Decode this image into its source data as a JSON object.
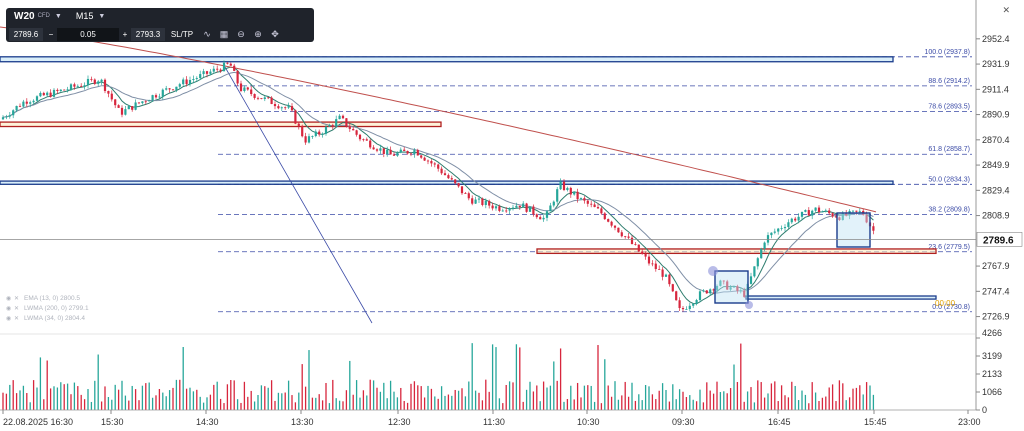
{
  "toolbar": {
    "symbol": "W20",
    "symbol_type": "CFD",
    "timeframe": "M15",
    "bid": "2789.6",
    "spread": "0.05",
    "ask": "2793.3",
    "sltp_label": "SL/TP",
    "minus": "−",
    "plus": "+"
  },
  "indicators": [
    "EMA (13, 0) 2800.5",
    "LWMA (200, 0) 2799.1",
    "LWMA (34, 0) 2804.4"
  ],
  "colors": {
    "bull": "#26a69a",
    "bear": "#d7263d",
    "ema": "#2e7d6e",
    "lwma200": "#c0504d",
    "lwma34": "#7f8fa6",
    "zone_blue": "#1a3c8c",
    "zone_red": "#b02020",
    "fib": "#3a4aa6"
  },
  "chart_data": {
    "type": "candlestick",
    "price_axis": {
      "min": 2716,
      "max": 2962,
      "ticks": [
        2952.4,
        2931.9,
        2911.4,
        2890.9,
        2870.4,
        2849.9,
        2829.4,
        2808.9,
        2789.6,
        2767.9,
        2747.4,
        2726.9
      ]
    },
    "current_price": 2789.6,
    "volume_axis": {
      "max": 4266,
      "ticks": [
        4266,
        3199,
        2133,
        1066,
        0
      ]
    },
    "time_labels": [
      "22.08.2025 16:30",
      "15:30",
      "14:30",
      "13:30",
      "12:30",
      "11:30",
      "10:30",
      "09:30",
      "16:45",
      "15:45",
      "23:00"
    ],
    "fibonacci": [
      {
        "label": "100.0 (2937.8)",
        "price": 2937.8
      },
      {
        "label": "88.6 (2914.2)",
        "price": 2914.2
      },
      {
        "label": "78.6 (2893.5)",
        "price": 2893.5
      },
      {
        "label": "61.8 (2858.7)",
        "price": 2858.7
      },
      {
        "label": "50.0 (2834.3)",
        "price": 2834.3
      },
      {
        "label": "38.2 (2809.8)",
        "price": 2809.8
      },
      {
        "label": "23.6 (2779.5)",
        "price": 2779.5
      },
      {
        "label": "0.0 (2730.8)",
        "price": 2730.8
      }
    ],
    "fib_marker": "00:00",
    "zones": [
      {
        "kind": "supply",
        "top": 2937.8,
        "bottom": 2933.8
      },
      {
        "kind": "support",
        "top": 2884.8,
        "bottom": 2881.2
      },
      {
        "kind": "supply",
        "top": 2836.9,
        "bottom": 2834.3
      },
      {
        "kind": "support",
        "top": 2781.8,
        "bottom": 2778.2
      },
      {
        "kind": "demand",
        "top": 2743.6,
        "bottom": 2741.1
      }
    ],
    "path": [
      [
        0,
        2887
      ],
      [
        25,
        2902
      ],
      [
        60,
        2910
      ],
      [
        100,
        2920
      ],
      [
        120,
        2892
      ],
      [
        150,
        2905
      ],
      [
        180,
        2916
      ],
      [
        200,
        2922
      ],
      [
        230,
        2932
      ],
      [
        240,
        2912
      ],
      [
        260,
        2905
      ],
      [
        290,
        2895
      ],
      [
        305,
        2870
      ],
      [
        320,
        2876
      ],
      [
        340,
        2888
      ],
      [
        360,
        2872
      ],
      [
        390,
        2858
      ],
      [
        415,
        2862
      ],
      [
        440,
        2846
      ],
      [
        470,
        2822
      ],
      [
        500,
        2815
      ],
      [
        520,
        2818
      ],
      [
        545,
        2806
      ],
      [
        560,
        2834
      ],
      [
        580,
        2822
      ],
      [
        600,
        2812
      ],
      [
        625,
        2792
      ],
      [
        650,
        2770
      ],
      [
        665,
        2760
      ],
      [
        680,
        2731
      ],
      [
        700,
        2745
      ],
      [
        720,
        2754
      ],
      [
        745,
        2745
      ],
      [
        765,
        2790
      ],
      [
        790,
        2805
      ],
      [
        815,
        2814
      ],
      [
        840,
        2808
      ],
      [
        862,
        2812
      ],
      [
        876,
        2793
      ]
    ]
  }
}
